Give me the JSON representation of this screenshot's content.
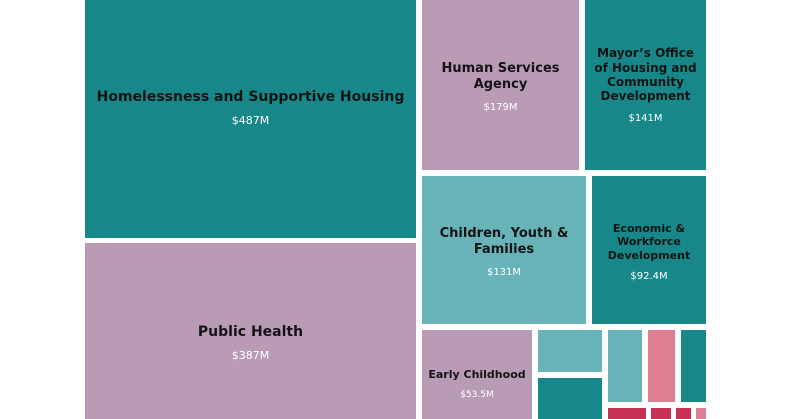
{
  "chart_data": {
    "type": "treemap",
    "items": [
      {
        "name": "Homelessness and Supportive Housing",
        "label": "$487M",
        "value": 487,
        "color": "#17878a"
      },
      {
        "name": "Public Health",
        "label": "$387M",
        "value": 387,
        "color": "#ba9bb6"
      },
      {
        "name": "Human Services Agency",
        "label": "$179M",
        "value": 179,
        "color": "#ba9bb6"
      },
      {
        "name": "Mayor’s Office of Housing and Community Development",
        "label": "$141M",
        "value": 141,
        "color": "#17878a"
      },
      {
        "name": "Children, Youth & Families",
        "label": "$131M",
        "value": 131,
        "color": "#67b3b8"
      },
      {
        "name": "Economic & Workforce Development",
        "label": "$92.4M",
        "value": 92.4,
        "color": "#17878a"
      },
      {
        "name": "Early Childhood",
        "label": "$53.5M",
        "value": 53.5,
        "color": "#ba9bb6"
      }
    ]
  }
}
